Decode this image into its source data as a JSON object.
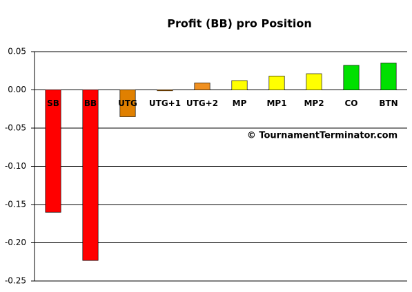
{
  "chart_data": {
    "type": "bar",
    "title": "Profit (BB) pro Position",
    "categories": [
      "SB",
      "BB",
      "UTG",
      "UTG+1",
      "UTG+2",
      "MP",
      "MP1",
      "MP2",
      "CO",
      "BTN"
    ],
    "values": [
      -0.16,
      -0.223,
      -0.035,
      -0.001,
      0.009,
      0.012,
      0.018,
      0.021,
      0.032,
      0.035
    ],
    "colors": [
      "#ff0000",
      "#ff0000",
      "#e08000",
      "#e08000",
      "#f09020",
      "#ffff00",
      "#ffff00",
      "#ffff00",
      "#00e000",
      "#00e000"
    ],
    "ylim": [
      -0.25,
      0.05
    ],
    "yticks": [
      {
        "value": -0.25,
        "label": "-0.25"
      },
      {
        "value": -0.2,
        "label": "-0.20"
      },
      {
        "value": -0.15,
        "label": "-0.15"
      },
      {
        "value": -0.1,
        "label": "-0.10"
      },
      {
        "value": -0.05,
        "label": "-0.05"
      },
      {
        "value": 0,
        "label": "0.00"
      },
      {
        "value": 0.05,
        "label": "0.05"
      }
    ],
    "grid": true,
    "annotation": "© TournamentTerminator.com"
  }
}
